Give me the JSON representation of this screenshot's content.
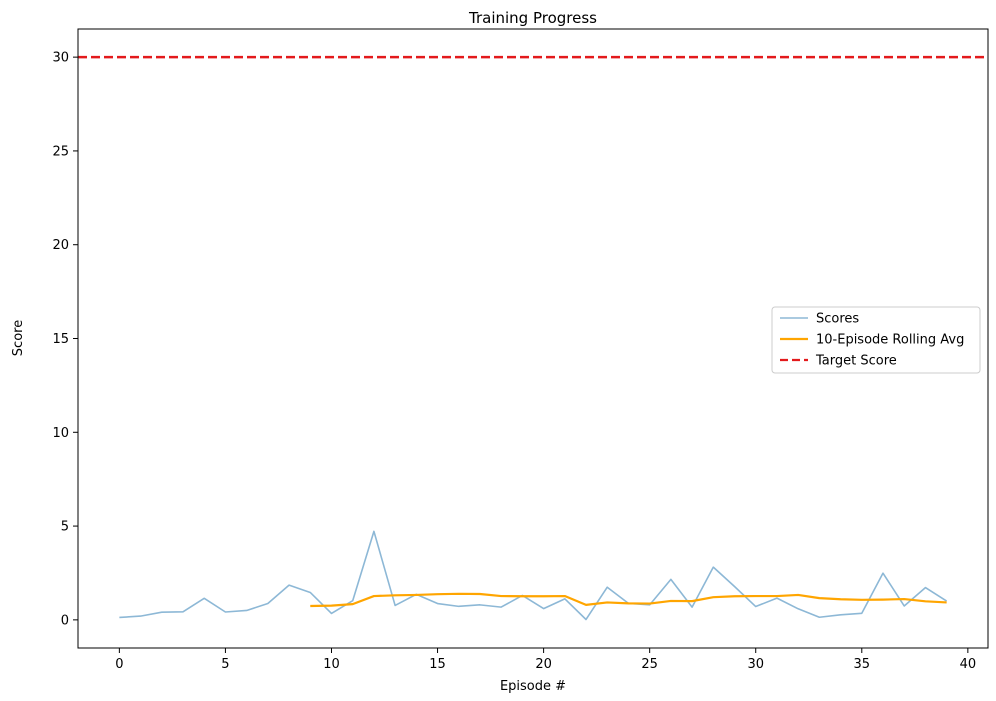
{
  "chart_data": {
    "type": "line",
    "title": "Training Progress",
    "xlabel": "Episode #",
    "ylabel": "Score",
    "xlim": [
      -1.95,
      40.95
    ],
    "ylim": [
      -1.5,
      31.5
    ],
    "x_ticks": [
      0,
      5,
      10,
      15,
      20,
      25,
      30,
      35,
      40
    ],
    "y_ticks": [
      0,
      5,
      10,
      15,
      20,
      25,
      30
    ],
    "grid": false,
    "legend_placement": "center-right",
    "series": [
      {
        "name": "Scores",
        "color": "#8db8d6",
        "style": "solid",
        "x": [
          0,
          1,
          2,
          3,
          4,
          5,
          6,
          7,
          8,
          9,
          10,
          11,
          12,
          13,
          14,
          15,
          16,
          17,
          18,
          19,
          20,
          21,
          22,
          23,
          24,
          25,
          26,
          27,
          28,
          29,
          30,
          31,
          32,
          33,
          34,
          35,
          36,
          37,
          38,
          39
        ],
        "values": [
          0.13,
          0.2,
          0.41,
          0.43,
          1.15,
          0.42,
          0.5,
          0.87,
          1.85,
          1.46,
          0.34,
          1.02,
          4.72,
          0.77,
          1.36,
          0.87,
          0.72,
          0.8,
          0.68,
          1.3,
          0.6,
          1.12,
          0.02,
          1.74,
          0.88,
          0.8,
          2.16,
          0.68,
          2.81,
          1.78,
          0.71,
          1.16,
          0.59,
          0.14,
          0.27,
          0.35,
          2.49,
          0.74,
          1.72,
          1.0
        ]
      },
      {
        "name": "10-Episode Rolling Avg",
        "color": "#ffa500",
        "style": "solid",
        "x": [
          9,
          10,
          11,
          12,
          13,
          14,
          15,
          16,
          17,
          18,
          19,
          20,
          21,
          22,
          23,
          24,
          25,
          26,
          27,
          28,
          29,
          30,
          31,
          32,
          33,
          34,
          35,
          36,
          37,
          38,
          39
        ],
        "values": [
          0.74,
          0.76,
          0.84,
          1.27,
          1.31,
          1.33,
          1.37,
          1.39,
          1.38,
          1.27,
          1.26,
          1.26,
          1.27,
          0.8,
          0.93,
          0.88,
          0.87,
          1.01,
          1.0,
          1.21,
          1.26,
          1.27,
          1.27,
          1.33,
          1.16,
          1.1,
          1.07,
          1.08,
          1.11,
          0.99,
          0.93
        ]
      },
      {
        "name": "Target Score",
        "color": "#e31a1c",
        "style": "dashed",
        "hline": 30
      }
    ]
  }
}
